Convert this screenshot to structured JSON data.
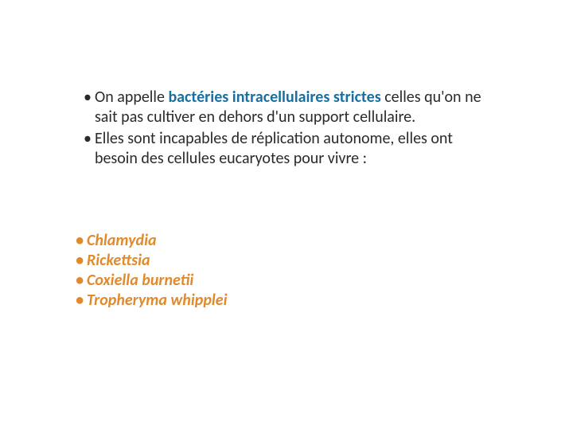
{
  "colors": {
    "background": "#ffffff",
    "text_dark": "#2a2a2a",
    "text_orange": "#e08a2c",
    "text_blue": "#1a6fa0"
  },
  "typography": {
    "base_fontsize_pt": 15,
    "line_height": 1.25,
    "font_family": "Calibri"
  },
  "block1": {
    "items": [
      {
        "pre": "On appelle ",
        "emph": "bactéries intracellulaires strictes",
        "post": " celles qu'on ne sait pas cultiver en dehors d'un support cellulaire."
      },
      {
        "pre": "Elles sont incapables de réplication autonome, elles ont besoin des cellules eucaryotes pour vivre :",
        "emph": "",
        "post": ""
      }
    ]
  },
  "block2": {
    "items": [
      "Chlamydia",
      "Rickettsia",
      "Coxiella burnetii",
      "Tropheryma whipplei"
    ]
  },
  "bullet_char": "•"
}
